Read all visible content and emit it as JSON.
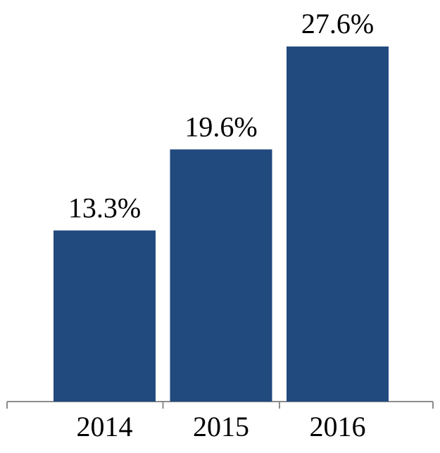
{
  "chart_data": {
    "type": "bar",
    "categories": [
      "2014",
      "2015",
      "2016"
    ],
    "values": [
      13.3,
      19.6,
      27.6
    ],
    "value_labels": [
      "13.3%",
      "19.6%",
      "27.6%"
    ],
    "color": "#214a7e"
  }
}
